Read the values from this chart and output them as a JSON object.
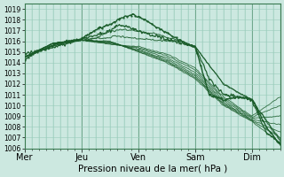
{
  "xlabel": "Pression niveau de la mer( hPa )",
  "background_color": "#cce8e0",
  "grid_color": "#99ccbb",
  "line_color": "#1a5c2a",
  "ylim": [
    1006,
    1019.5
  ],
  "yticks": [
    1006,
    1007,
    1008,
    1009,
    1010,
    1011,
    1012,
    1013,
    1014,
    1015,
    1016,
    1017,
    1018,
    1019
  ],
  "day_labels": [
    "Mer",
    "Jeu",
    "Ven",
    "Sam",
    "Dim"
  ],
  "day_positions": [
    0,
    24,
    48,
    72,
    96
  ],
  "xlim": [
    0,
    108
  ],
  "figsize": [
    3.2,
    2.0
  ],
  "dpi": 100
}
